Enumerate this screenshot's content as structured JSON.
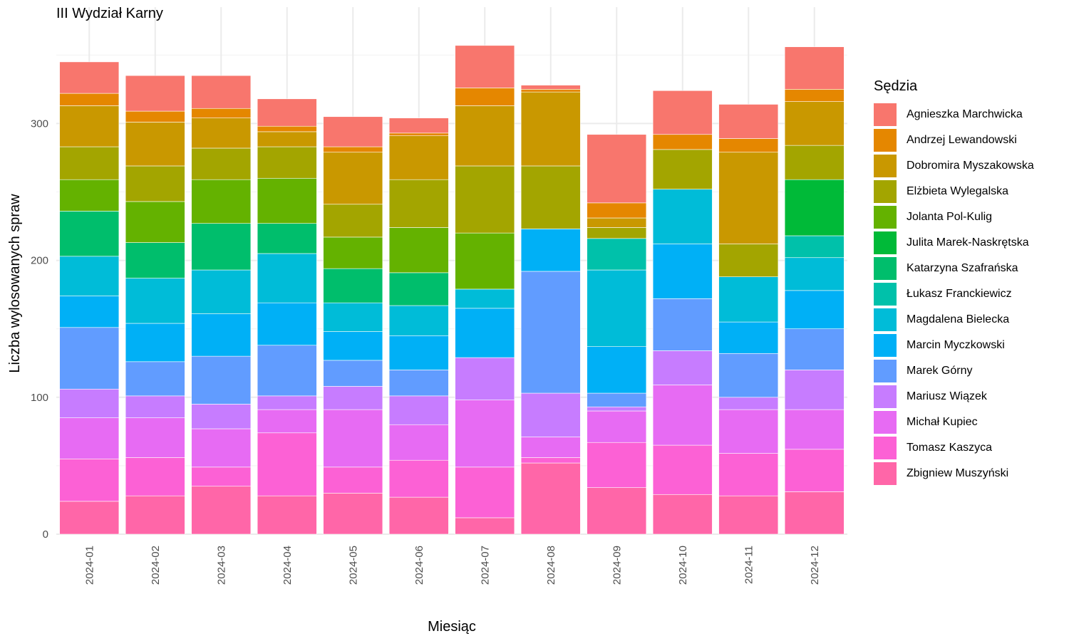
{
  "chart_data": {
    "type": "bar",
    "stacked": true,
    "title": "III Wydział Karny",
    "xlabel": "Miesiąc",
    "ylabel": "Liczba wylosowanych spraw",
    "ylim": [
      0,
      385
    ],
    "yticks": [
      0,
      100,
      200,
      300
    ],
    "grid": true,
    "legend": {
      "title": "Sędzia",
      "position": "right"
    },
    "categories": [
      "2024-01",
      "2024-02",
      "2024-03",
      "2024-04",
      "2024-05",
      "2024-06",
      "2024-07",
      "2024-08",
      "2024-09",
      "2024-10",
      "2024-11",
      "2024-12"
    ],
    "series": [
      {
        "name": "Zbigniew Muszyński",
        "color": "#FF66A8",
        "values": [
          24,
          28,
          35,
          28,
          30,
          27,
          12,
          52,
          34,
          29,
          28,
          31
        ]
      },
      {
        "name": "Tomasz Kaszyca",
        "color": "#FC61D5",
        "values": [
          31,
          28,
          14,
          46,
          19,
          27,
          37,
          4,
          33,
          36,
          31,
          31
        ]
      },
      {
        "name": "Michał Kupiec",
        "color": "#E76BF3",
        "values": [
          30,
          29,
          28,
          17,
          42,
          26,
          49,
          15,
          23,
          44,
          32,
          29
        ]
      },
      {
        "name": "Mariusz Wiązek",
        "color": "#C77CFF",
        "values": [
          21,
          16,
          18,
          10,
          17,
          21,
          31,
          32,
          3,
          25,
          9,
          29
        ]
      },
      {
        "name": "Marek Górny",
        "color": "#619CFF",
        "values": [
          45,
          25,
          35,
          37,
          19,
          19,
          0,
          89,
          10,
          38,
          32,
          30
        ]
      },
      {
        "name": "Marcin Myczkowski",
        "color": "#00B0F6",
        "values": [
          23,
          28,
          31,
          31,
          21,
          25,
          36,
          31,
          34,
          40,
          23,
          28
        ]
      },
      {
        "name": "Magdalena Bielecka",
        "color": "#00BCD8",
        "values": [
          29,
          33,
          32,
          36,
          21,
          22,
          14,
          0,
          56,
          40,
          33,
          24
        ]
      },
      {
        "name": "Łukasz Franckiewicz",
        "color": "#00C1AA",
        "values": [
          0,
          0,
          0,
          0,
          0,
          0,
          0,
          0,
          23,
          0,
          0,
          16
        ]
      },
      {
        "name": "Katarzyna Szafrańska",
        "color": "#00BE6C",
        "values": [
          33,
          26,
          34,
          22,
          25,
          24,
          0,
          0,
          0,
          0,
          0,
          0
        ]
      },
      {
        "name": "Julita Marek-Naskrętska",
        "color": "#00BA38",
        "values": [
          0,
          0,
          0,
          0,
          0,
          0,
          0,
          0,
          0,
          0,
          0,
          41
        ]
      },
      {
        "name": "Jolanta Pol-Kulig",
        "color": "#64B200",
        "values": [
          23,
          30,
          32,
          33,
          23,
          33,
          41,
          0,
          0,
          0,
          0,
          0
        ]
      },
      {
        "name": "Elżbieta Wylegalska",
        "color": "#A3A500",
        "values": [
          24,
          26,
          23,
          23,
          24,
          35,
          49,
          46,
          8,
          29,
          24,
          25
        ]
      },
      {
        "name": "Dobromira Myszakowska",
        "color": "#C99800",
        "values": [
          30,
          32,
          22,
          11,
          38,
          32,
          44,
          54,
          7,
          0,
          67,
          32
        ]
      },
      {
        "name": "Andrzej Lewandowski",
        "color": "#E58700",
        "values": [
          9,
          8,
          7,
          4,
          4,
          2,
          13,
          2,
          11,
          11,
          10,
          9
        ]
      },
      {
        "name": "Agnieszka Marchwicka",
        "color": "#F8766D",
        "values": [
          23,
          26,
          24,
          20,
          22,
          11,
          31,
          3,
          50,
          32,
          25,
          31
        ]
      }
    ]
  }
}
